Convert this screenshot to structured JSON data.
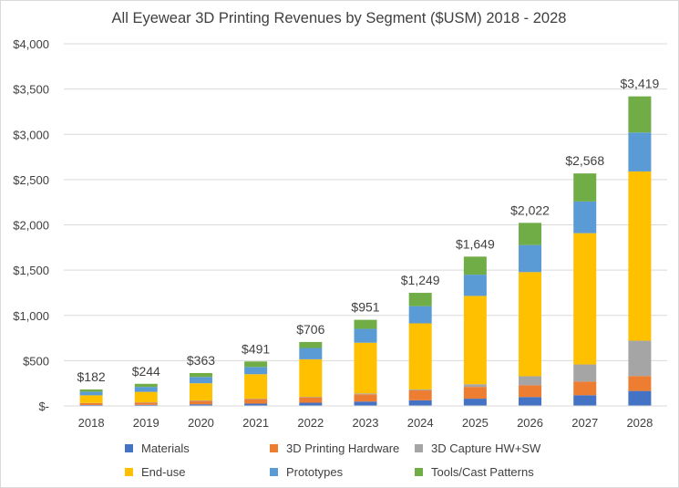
{
  "chart_data": {
    "type": "stacked-bar",
    "title": "All Eyewear 3D Printing Revenues by Segment ($USM) 2018 - 2028",
    "xlabel": "",
    "ylabel": "",
    "ylim": [
      0,
      4000
    ],
    "yticks": [
      0,
      500,
      1000,
      1500,
      2000,
      2500,
      3000,
      3500,
      4000
    ],
    "ytick_labels": [
      "$-",
      "$500",
      "$1,000",
      "$1,500",
      "$2,000",
      "$2,500",
      "$3,000",
      "$3,500",
      "$4,000"
    ],
    "categories": [
      "2018",
      "2019",
      "2020",
      "2021",
      "2022",
      "2023",
      "2024",
      "2025",
      "2026",
      "2027",
      "2028"
    ],
    "totals": [
      182,
      244,
      363,
      491,
      706,
      951,
      1249,
      1649,
      2022,
      2568,
      3419
    ],
    "total_labels": [
      "$182",
      "$244",
      "$363",
      "$491",
      "$706",
      "$951",
      "$1,249",
      "$1,649",
      "$2,022",
      "$2,568",
      "$3,419"
    ],
    "legend_position": "bottom",
    "series": [
      {
        "name": "Materials",
        "color": "#4472c4",
        "values": [
          10,
          12,
          18,
          25,
          35,
          48,
          62,
          80,
          98,
          118,
          165
        ]
      },
      {
        "name": "3D Printing Hardware",
        "color": "#ed7d31",
        "values": [
          20,
          25,
          37,
          50,
          60,
          80,
          110,
          130,
          130,
          150,
          165
        ]
      },
      {
        "name": "3D Capture HW+SW",
        "color": "#a5a5a5",
        "values": [
          2,
          3,
          5,
          5,
          5,
          10,
          10,
          30,
          100,
          190,
          390
        ]
      },
      {
        "name": "End-use",
        "color": "#ffc000",
        "values": [
          85,
          115,
          190,
          270,
          415,
          560,
          730,
          975,
          1150,
          1450,
          1870
        ]
      },
      {
        "name": "Prototypes",
        "color": "#5b9bd5",
        "values": [
          40,
          55,
          70,
          80,
          125,
          153,
          190,
          235,
          299,
          350,
          430
        ]
      },
      {
        "name": "Tools/Cast Patterns",
        "color": "#70ad47",
        "values": [
          25,
          34,
          43,
          61,
          66,
          100,
          147,
          199,
          245,
          310,
          399
        ]
      }
    ]
  }
}
